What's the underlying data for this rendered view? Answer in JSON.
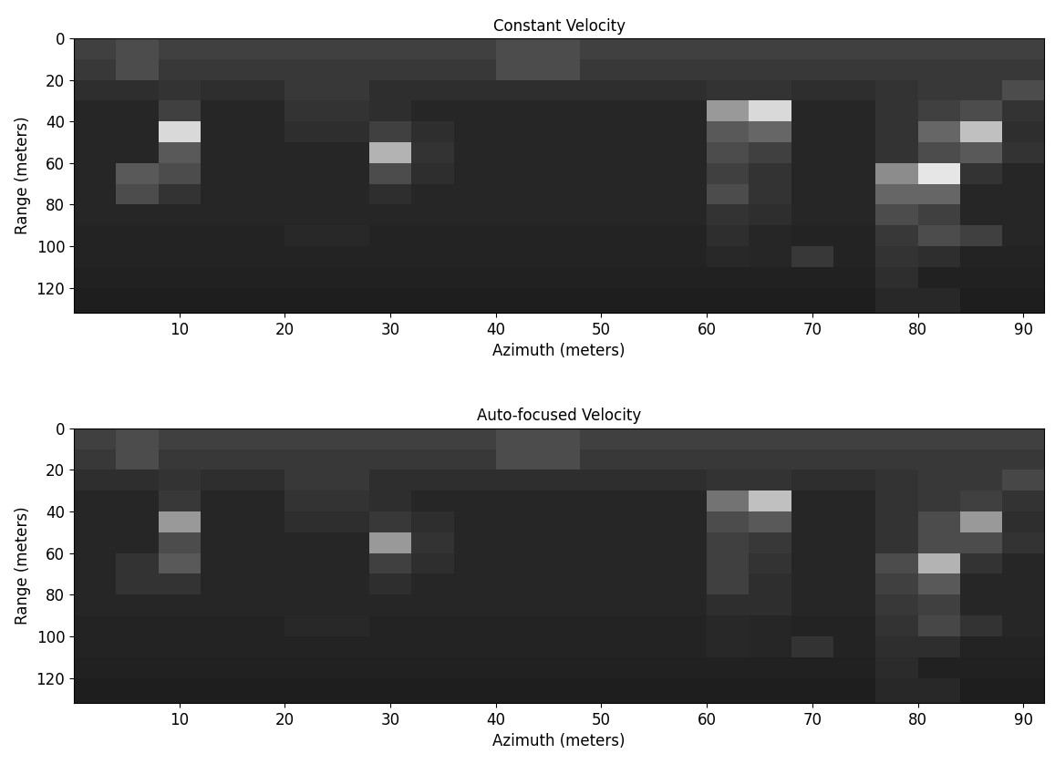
{
  "chart_data": [
    {
      "type": "heatmap",
      "title": "Constant Velocity",
      "x_label": "Azimuth (meters)",
      "y_label": "Range (meters)",
      "xlim": [
        0,
        92
      ],
      "ylim": [
        132,
        0
      ],
      "xticks": [
        10,
        20,
        30,
        40,
        50,
        60,
        70,
        80,
        90
      ],
      "yticks": [
        0,
        20,
        40,
        60,
        80,
        100,
        120
      ],
      "x_edges": [
        0,
        4,
        8,
        12,
        16,
        20,
        24,
        28,
        32,
        36,
        40,
        44,
        48,
        52,
        56,
        60,
        64,
        68,
        72,
        76,
        80,
        84,
        88,
        92
      ],
      "y_edges": [
        0,
        10,
        20,
        30,
        40,
        50,
        60,
        70,
        80,
        90,
        100,
        110,
        120,
        132
      ],
      "value_range": [
        0,
        1
      ],
      "cells": [
        [
          0.25,
          0.3,
          0.25,
          0.25,
          0.25,
          0.25,
          0.25,
          0.25,
          0.25,
          0.25,
          0.3,
          0.3,
          0.25,
          0.25,
          0.25,
          0.25,
          0.25,
          0.25,
          0.25,
          0.25,
          0.25,
          0.25,
          0.25
        ],
        [
          0.22,
          0.3,
          0.22,
          0.22,
          0.22,
          0.22,
          0.22,
          0.22,
          0.22,
          0.22,
          0.3,
          0.3,
          0.22,
          0.22,
          0.22,
          0.22,
          0.22,
          0.22,
          0.22,
          0.22,
          0.22,
          0.22,
          0.22
        ],
        [
          0.18,
          0.18,
          0.2,
          0.18,
          0.18,
          0.22,
          0.22,
          0.18,
          0.18,
          0.18,
          0.18,
          0.18,
          0.18,
          0.18,
          0.18,
          0.2,
          0.2,
          0.18,
          0.18,
          0.2,
          0.22,
          0.22,
          0.3
        ],
        [
          0.15,
          0.15,
          0.25,
          0.15,
          0.15,
          0.2,
          0.2,
          0.18,
          0.15,
          0.15,
          0.15,
          0.15,
          0.15,
          0.15,
          0.15,
          0.6,
          0.85,
          0.15,
          0.15,
          0.2,
          0.25,
          0.3,
          0.2
        ],
        [
          0.15,
          0.15,
          0.85,
          0.15,
          0.15,
          0.18,
          0.18,
          0.25,
          0.18,
          0.15,
          0.15,
          0.15,
          0.15,
          0.15,
          0.15,
          0.35,
          0.4,
          0.15,
          0.15,
          0.2,
          0.4,
          0.75,
          0.18
        ],
        [
          0.15,
          0.15,
          0.35,
          0.15,
          0.15,
          0.15,
          0.15,
          0.7,
          0.2,
          0.15,
          0.15,
          0.15,
          0.15,
          0.15,
          0.15,
          0.3,
          0.25,
          0.15,
          0.15,
          0.2,
          0.3,
          0.35,
          0.2
        ],
        [
          0.15,
          0.35,
          0.3,
          0.15,
          0.15,
          0.15,
          0.15,
          0.3,
          0.18,
          0.15,
          0.15,
          0.15,
          0.15,
          0.15,
          0.15,
          0.25,
          0.2,
          0.15,
          0.15,
          0.55,
          0.9,
          0.2,
          0.15
        ],
        [
          0.15,
          0.3,
          0.2,
          0.15,
          0.15,
          0.15,
          0.15,
          0.18,
          0.15,
          0.15,
          0.15,
          0.15,
          0.15,
          0.15,
          0.15,
          0.3,
          0.2,
          0.15,
          0.15,
          0.4,
          0.4,
          0.15,
          0.15
        ],
        [
          0.15,
          0.15,
          0.15,
          0.15,
          0.15,
          0.15,
          0.15,
          0.15,
          0.15,
          0.15,
          0.15,
          0.15,
          0.15,
          0.15,
          0.15,
          0.2,
          0.18,
          0.15,
          0.15,
          0.3,
          0.25,
          0.15,
          0.15
        ],
        [
          0.14,
          0.14,
          0.14,
          0.14,
          0.14,
          0.16,
          0.16,
          0.14,
          0.14,
          0.14,
          0.14,
          0.14,
          0.14,
          0.14,
          0.14,
          0.18,
          0.15,
          0.14,
          0.14,
          0.22,
          0.3,
          0.25,
          0.15
        ],
        [
          0.14,
          0.14,
          0.14,
          0.14,
          0.14,
          0.14,
          0.14,
          0.14,
          0.14,
          0.14,
          0.14,
          0.14,
          0.14,
          0.14,
          0.14,
          0.16,
          0.15,
          0.22,
          0.14,
          0.2,
          0.18,
          0.14,
          0.14
        ],
        [
          0.13,
          0.13,
          0.13,
          0.13,
          0.13,
          0.13,
          0.13,
          0.13,
          0.13,
          0.13,
          0.13,
          0.13,
          0.13,
          0.13,
          0.13,
          0.13,
          0.13,
          0.13,
          0.13,
          0.18,
          0.13,
          0.13,
          0.13
        ],
        [
          0.12,
          0.12,
          0.12,
          0.12,
          0.12,
          0.12,
          0.12,
          0.12,
          0.12,
          0.12,
          0.12,
          0.12,
          0.12,
          0.12,
          0.12,
          0.12,
          0.12,
          0.12,
          0.12,
          0.16,
          0.16,
          0.12,
          0.12
        ]
      ]
    },
    {
      "type": "heatmap",
      "title": "Auto-focused Velocity",
      "x_label": "Azimuth (meters)",
      "y_label": "Range (meters)",
      "xlim": [
        0,
        92
      ],
      "ylim": [
        132,
        0
      ],
      "xticks": [
        10,
        20,
        30,
        40,
        50,
        60,
        70,
        80,
        90
      ],
      "yticks": [
        0,
        20,
        40,
        60,
        80,
        100,
        120
      ],
      "x_edges": [
        0,
        4,
        8,
        12,
        16,
        20,
        24,
        28,
        32,
        36,
        40,
        44,
        48,
        52,
        56,
        60,
        64,
        68,
        72,
        76,
        80,
        84,
        88,
        92
      ],
      "y_edges": [
        0,
        10,
        20,
        30,
        40,
        50,
        60,
        70,
        80,
        90,
        100,
        110,
        120,
        132
      ],
      "value_range": [
        0,
        1
      ],
      "cells": [
        [
          0.25,
          0.3,
          0.25,
          0.25,
          0.25,
          0.25,
          0.25,
          0.25,
          0.25,
          0.25,
          0.3,
          0.3,
          0.25,
          0.25,
          0.25,
          0.25,
          0.25,
          0.25,
          0.25,
          0.25,
          0.25,
          0.25,
          0.25
        ],
        [
          0.22,
          0.3,
          0.22,
          0.22,
          0.22,
          0.22,
          0.22,
          0.22,
          0.22,
          0.22,
          0.3,
          0.3,
          0.22,
          0.22,
          0.22,
          0.22,
          0.22,
          0.22,
          0.22,
          0.22,
          0.22,
          0.22,
          0.22
        ],
        [
          0.18,
          0.18,
          0.2,
          0.18,
          0.18,
          0.22,
          0.22,
          0.18,
          0.18,
          0.18,
          0.18,
          0.18,
          0.18,
          0.18,
          0.18,
          0.2,
          0.2,
          0.18,
          0.18,
          0.2,
          0.22,
          0.22,
          0.28
        ],
        [
          0.15,
          0.15,
          0.22,
          0.15,
          0.15,
          0.2,
          0.2,
          0.18,
          0.15,
          0.15,
          0.15,
          0.15,
          0.15,
          0.15,
          0.15,
          0.45,
          0.75,
          0.15,
          0.15,
          0.2,
          0.22,
          0.25,
          0.2
        ],
        [
          0.15,
          0.15,
          0.6,
          0.15,
          0.15,
          0.18,
          0.18,
          0.22,
          0.18,
          0.15,
          0.15,
          0.15,
          0.15,
          0.15,
          0.15,
          0.3,
          0.35,
          0.15,
          0.15,
          0.2,
          0.3,
          0.6,
          0.18
        ],
        [
          0.15,
          0.15,
          0.3,
          0.15,
          0.15,
          0.15,
          0.15,
          0.6,
          0.2,
          0.15,
          0.15,
          0.15,
          0.15,
          0.15,
          0.15,
          0.25,
          0.22,
          0.15,
          0.15,
          0.2,
          0.3,
          0.3,
          0.2
        ],
        [
          0.15,
          0.2,
          0.35,
          0.15,
          0.15,
          0.15,
          0.15,
          0.25,
          0.18,
          0.15,
          0.15,
          0.15,
          0.15,
          0.15,
          0.15,
          0.25,
          0.2,
          0.15,
          0.15,
          0.3,
          0.7,
          0.2,
          0.15
        ],
        [
          0.15,
          0.2,
          0.2,
          0.15,
          0.15,
          0.15,
          0.15,
          0.18,
          0.15,
          0.15,
          0.15,
          0.15,
          0.15,
          0.15,
          0.15,
          0.25,
          0.18,
          0.15,
          0.15,
          0.25,
          0.35,
          0.15,
          0.15
        ],
        [
          0.15,
          0.15,
          0.15,
          0.15,
          0.15,
          0.15,
          0.15,
          0.15,
          0.15,
          0.15,
          0.15,
          0.15,
          0.15,
          0.15,
          0.15,
          0.18,
          0.18,
          0.15,
          0.15,
          0.22,
          0.25,
          0.15,
          0.15
        ],
        [
          0.14,
          0.14,
          0.14,
          0.14,
          0.14,
          0.16,
          0.16,
          0.14,
          0.14,
          0.14,
          0.14,
          0.14,
          0.14,
          0.14,
          0.14,
          0.16,
          0.15,
          0.14,
          0.14,
          0.2,
          0.28,
          0.2,
          0.15
        ],
        [
          0.14,
          0.14,
          0.14,
          0.14,
          0.14,
          0.14,
          0.14,
          0.14,
          0.14,
          0.14,
          0.14,
          0.14,
          0.14,
          0.14,
          0.14,
          0.16,
          0.15,
          0.2,
          0.14,
          0.18,
          0.18,
          0.14,
          0.14
        ],
        [
          0.13,
          0.13,
          0.13,
          0.13,
          0.13,
          0.13,
          0.13,
          0.13,
          0.13,
          0.13,
          0.13,
          0.13,
          0.13,
          0.13,
          0.13,
          0.13,
          0.13,
          0.13,
          0.13,
          0.17,
          0.13,
          0.13,
          0.13
        ],
        [
          0.12,
          0.12,
          0.12,
          0.12,
          0.12,
          0.12,
          0.12,
          0.12,
          0.12,
          0.12,
          0.12,
          0.12,
          0.12,
          0.12,
          0.12,
          0.12,
          0.12,
          0.12,
          0.12,
          0.16,
          0.16,
          0.12,
          0.12
        ]
      ]
    }
  ]
}
